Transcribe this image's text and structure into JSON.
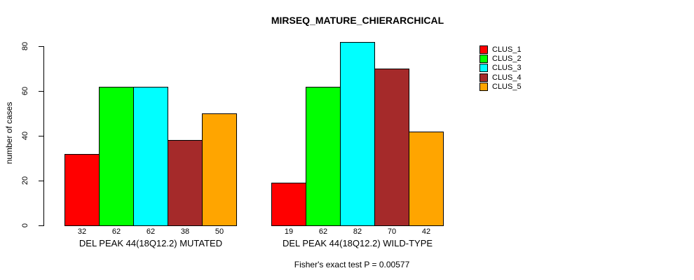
{
  "chart_data": {
    "type": "bar",
    "title": "MIRSEQ_MATURE_CHIERARCHICAL",
    "ylabel": "number of cases",
    "xlabel": "",
    "yticks": [
      0,
      20,
      40,
      60,
      80
    ],
    "ylim": [
      0,
      82
    ],
    "grid": false,
    "legend_position": "right",
    "legend": [
      {
        "label": "CLUS_1",
        "color": "#ff0000"
      },
      {
        "label": "CLUS_2",
        "color": "#00ff00"
      },
      {
        "label": "CLUS_3",
        "color": "#00ffff"
      },
      {
        "label": "CLUS_4",
        "color": "#a52a2a"
      },
      {
        "label": "CLUS_5",
        "color": "#ffa500"
      }
    ],
    "groups": [
      {
        "label": "DEL PEAK 44(18Q12.2) MUTATED",
        "values": [
          32,
          62,
          62,
          38,
          50
        ]
      },
      {
        "label": "DEL PEAK 44(18Q12.2) WILD-TYPE",
        "values": [
          19,
          62,
          82,
          70,
          42
        ]
      }
    ],
    "annotation": "Fisher's exact test P = 0.00577",
    "background_color": "#ffffff",
    "bar_border_color": "#000000"
  }
}
